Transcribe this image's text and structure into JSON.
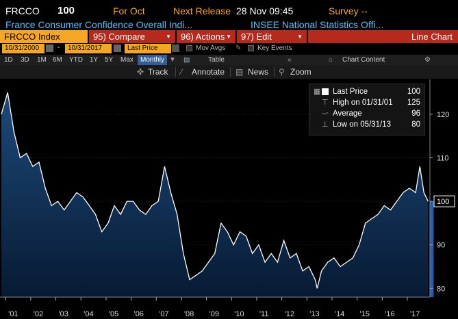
{
  "header": {
    "ticker": "FRCCO",
    "price": "100",
    "for_label": "For Oct",
    "next_release_label": "Next Release",
    "next_release_value": "28 Nov 09:45",
    "survey_label": "Survey --",
    "description": "France Consumer Confidence Overall Indi...",
    "source": "INSEE National Statistics Offi..."
  },
  "command_bar": {
    "index": "FRCCO Index",
    "compare": "95) Compare",
    "actions": "96) Actions",
    "edit": "97) Edit",
    "chart_type": "Line Chart"
  },
  "dates": {
    "start": "10/31/2000",
    "end": "10/31/2017",
    "price_field": "Last Price",
    "mov_avgs": "Mov Avgs",
    "key_events": "Key Events"
  },
  "periods": {
    "items": [
      "1D",
      "3D",
      "1M",
      "6M",
      "YTD",
      "1Y",
      "5Y",
      "Max"
    ],
    "frequency": "Monthly",
    "table": "Table",
    "chart_content": "Chart Content"
  },
  "tools": {
    "track": "Track",
    "annotate": "Annotate",
    "news": "News",
    "zoom": "Zoom"
  },
  "legend": {
    "last_label": "Last Price",
    "last_value": "100",
    "high_label": "High on 01/31/01",
    "high_value": "125",
    "avg_label": "Average",
    "avg_value": "96",
    "low_label": "Low on 05/31/13",
    "low_value": "80"
  },
  "colors": {
    "accent_orange": "#f5a623",
    "accent_red": "#b52a1c",
    "link_blue": "#4fc3f7",
    "fill_top": "#1d4a7a",
    "fill_bottom": "#071a33"
  },
  "chart_data": {
    "type": "area",
    "x_tick_labels": [
      "'01",
      "'02",
      "'03",
      "'04",
      "'05",
      "'06",
      "'07",
      "'08",
      "'09",
      "'10",
      "'11",
      "'12",
      "'13",
      "'14",
      "'15",
      "'16",
      "'17"
    ],
    "y_tick_labels": [
      "80",
      "90",
      "100",
      "110",
      "120"
    ],
    "ylim": [
      78,
      128
    ],
    "last_value_label": "100",
    "x": [
      2000.83,
      2001.08,
      2001.33,
      2001.58,
      2001.83,
      2002.08,
      2002.33,
      2002.58,
      2002.83,
      2003.08,
      2003.33,
      2003.58,
      2003.83,
      2004.08,
      2004.33,
      2004.58,
      2004.83,
      2005.08,
      2005.33,
      2005.58,
      2005.83,
      2006.08,
      2006.33,
      2006.58,
      2006.83,
      2007.08,
      2007.33,
      2007.58,
      2007.83,
      2008.08,
      2008.33,
      2008.58,
      2008.83,
      2009.08,
      2009.33,
      2009.58,
      2009.83,
      2010.08,
      2010.33,
      2010.58,
      2010.83,
      2011.08,
      2011.33,
      2011.58,
      2011.83,
      2012.08,
      2012.33,
      2012.58,
      2012.83,
      2013.08,
      2013.33,
      2013.41,
      2013.58,
      2013.83,
      2014.08,
      2014.33,
      2014.58,
      2014.83,
      2015.08,
      2015.33,
      2015.58,
      2015.83,
      2016.08,
      2016.33,
      2016.58,
      2016.83,
      2017.08,
      2017.33,
      2017.5,
      2017.66,
      2017.83
    ],
    "y": [
      120,
      125,
      116,
      110,
      111,
      108,
      109,
      103,
      99,
      100,
      98,
      100,
      102,
      101,
      99,
      97,
      93,
      95,
      99,
      97,
      100,
      100,
      98,
      97,
      99,
      100,
      108,
      102,
      97,
      88,
      82,
      83,
      84,
      86,
      88,
      95,
      93,
      90,
      93,
      92,
      88,
      90,
      86,
      88,
      86,
      91,
      87,
      88,
      84,
      85,
      82,
      80,
      84,
      86,
      87,
      85,
      86,
      87,
      90,
      95,
      96,
      97,
      99,
      98,
      100,
      102,
      103,
      102,
      108,
      102,
      100
    ]
  }
}
